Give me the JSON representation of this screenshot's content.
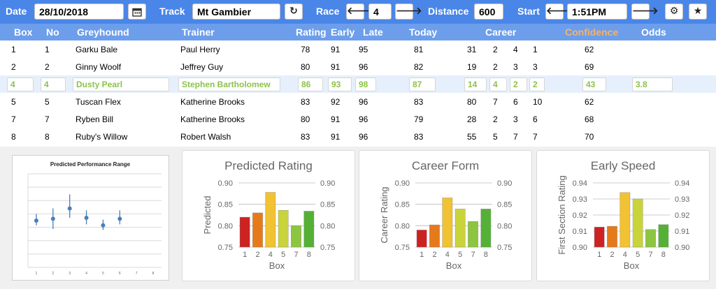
{
  "toolbar": {
    "date_label": "Date",
    "date_value": "28/10/2018",
    "calendar_icon": "calendar-icon",
    "track_label": "Track",
    "track_value": "Mt Gambier",
    "refresh_icon": "refresh-icon",
    "race_label": "Race",
    "race_value": "4",
    "distance_label": "Distance",
    "distance_value": "600",
    "start_label": "Start",
    "start_value": "1:51PM",
    "settings_icon": "gear-icon",
    "favourite_icon": "star-icon"
  },
  "table": {
    "columns": {
      "box": "Box",
      "no": "No",
      "greyhound": "Greyhound",
      "trainer": "Trainer",
      "rating": "Rating",
      "early": "Early",
      "late": "Late",
      "today": "Today",
      "career": "Career",
      "confidence": "Confidence",
      "odds": "Odds"
    },
    "confidence_color": "#f6b26b",
    "rows": [
      {
        "box": "1",
        "no": "1",
        "greyhound": "Garku Bale",
        "trainer": "Paul Herry",
        "rating": "78",
        "early": "91",
        "late": "95",
        "today": "81",
        "c1": "31",
        "c2": "2",
        "c3": "4",
        "c4": "1",
        "confidence": "62",
        "odds": ""
      },
      {
        "box": "2",
        "no": "2",
        "greyhound": "Ginny Woolf",
        "trainer": "Jeffrey Guy",
        "rating": "80",
        "early": "91",
        "late": "96",
        "today": "82",
        "c1": "19",
        "c2": "2",
        "c3": "3",
        "c4": "3",
        "confidence": "69",
        "odds": ""
      },
      {
        "box": "4",
        "no": "4",
        "greyhound": "Dusty Pearl",
        "trainer": "Stephen Bartholomew",
        "rating": "86",
        "early": "93",
        "late": "98",
        "today": "87",
        "c1": "14",
        "c2": "4",
        "c3": "2",
        "c4": "2",
        "confidence": "43",
        "odds": "3.8"
      },
      {
        "box": "5",
        "no": "5",
        "greyhound": "Tuscan Flex",
        "trainer": "Katherine Brooks",
        "rating": "83",
        "early": "92",
        "late": "96",
        "today": "83",
        "c1": "80",
        "c2": "7",
        "c3": "6",
        "c4": "10",
        "confidence": "62",
        "odds": ""
      },
      {
        "box": "7",
        "no": "7",
        "greyhound": "Ryben Bill",
        "trainer": "Katherine Brooks",
        "rating": "80",
        "early": "91",
        "late": "96",
        "today": "79",
        "c1": "28",
        "c2": "2",
        "c3": "3",
        "c4": "6",
        "confidence": "68",
        "odds": ""
      },
      {
        "box": "8",
        "no": "8",
        "greyhound": "Ruby's Willow",
        "trainer": "Robert Walsh",
        "rating": "83",
        "early": "91",
        "late": "96",
        "today": "83",
        "c1": "55",
        "c2": "5",
        "c3": "7",
        "c4": "7",
        "confidence": "70",
        "odds": ""
      }
    ],
    "selected_row": 2
  },
  "chart_data": [
    {
      "type": "scatter",
      "title": "Predicted Performance Range",
      "x": [
        1,
        2,
        3,
        4,
        5,
        6
      ],
      "y": [
        0.5,
        0.52,
        0.63,
        0.53,
        0.45,
        0.52
      ],
      "low": [
        0.45,
        0.41,
        0.53,
        0.46,
        0.4,
        0.46
      ],
      "high": [
        0.57,
        0.63,
        0.78,
        0.61,
        0.51,
        0.61
      ],
      "xticks": [
        "1",
        "2",
        "3",
        "4",
        "5",
        "6",
        "7",
        "8"
      ],
      "xlim": [
        0.5,
        8.5
      ],
      "ylim": [
        0,
        1
      ],
      "grid": true,
      "color": "#4a7ebb"
    },
    {
      "type": "bar",
      "title": "Predicted Rating",
      "xlabel": "Box",
      "ylabel": "Predicted",
      "categories": [
        "1",
        "2",
        "4",
        "5",
        "7",
        "8"
      ],
      "values": [
        0.82,
        0.83,
        0.878,
        0.836,
        0.8,
        0.834
      ],
      "ylim": [
        0.75,
        0.9
      ],
      "yticks": [
        "0.75",
        "0.80",
        "0.85",
        "0.90"
      ],
      "colors": [
        "#cc2222",
        "#e67a1a",
        "#f1c232",
        "#c9d43a",
        "#8cc63f",
        "#55b036"
      ]
    },
    {
      "type": "bar",
      "title": "Career Form",
      "xlabel": "Box",
      "ylabel": "Career Rating",
      "categories": [
        "1",
        "2",
        "4",
        "5",
        "7",
        "8"
      ],
      "values": [
        0.79,
        0.802,
        0.865,
        0.839,
        0.81,
        0.839
      ],
      "ylim": [
        0.75,
        0.9
      ],
      "yticks": [
        "0.75",
        "0.80",
        "0.85",
        "0.90"
      ],
      "colors": [
        "#cc2222",
        "#e67a1a",
        "#f1c232",
        "#c9d43a",
        "#8cc63f",
        "#55b036"
      ]
    },
    {
      "type": "bar",
      "title": "Early Speed",
      "xlabel": "Box",
      "ylabel": "First Section Rating",
      "categories": [
        "1",
        "2",
        "4",
        "5",
        "7",
        "8"
      ],
      "values": [
        0.9125,
        0.913,
        0.934,
        0.93,
        0.911,
        0.914
      ],
      "ylim": [
        0.9,
        0.94
      ],
      "yticks": [
        "0.90",
        "0.91",
        "0.92",
        "0.93",
        "0.94"
      ],
      "colors": [
        "#cc2222",
        "#e67a1a",
        "#f1c232",
        "#c9d43a",
        "#8cc63f",
        "#55b036"
      ]
    }
  ]
}
